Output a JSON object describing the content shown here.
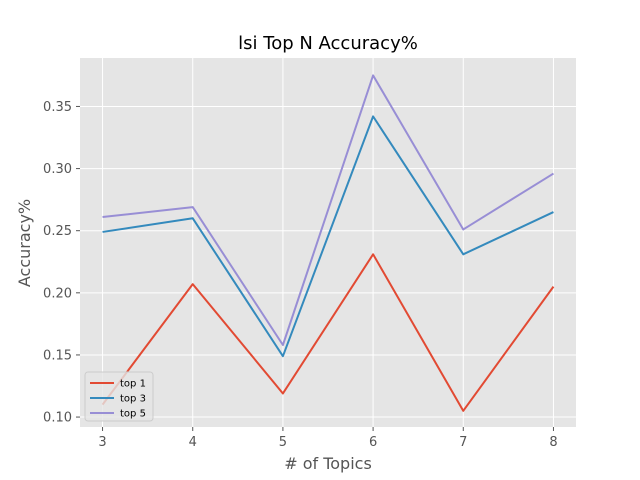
{
  "chart_data": {
    "type": "line",
    "title": "lsi Top N Accuracy%",
    "xlabel": "# of Topics",
    "ylabel": "Accuracy%",
    "x": [
      3,
      4,
      5,
      6,
      7,
      8
    ],
    "xlim": [
      2.75,
      8.25
    ],
    "ylim": [
      0.092,
      0.389
    ],
    "xticks": [
      "3",
      "4",
      "5",
      "6",
      "7",
      "8"
    ],
    "yticks": [
      "0.10",
      "0.15",
      "0.20",
      "0.25",
      "0.30",
      "0.35"
    ],
    "grid": true,
    "legend_position": "lower-left",
    "style": {
      "background": "#e5e5e5",
      "grid_color": "#ffffff"
    },
    "series": [
      {
        "name": "top 1",
        "color": "#e24a33",
        "values": [
          0.11,
          0.207,
          0.119,
          0.231,
          0.105,
          0.205
        ]
      },
      {
        "name": "top 3",
        "color": "#348abd",
        "values": [
          0.249,
          0.26,
          0.149,
          0.342,
          0.231,
          0.265
        ]
      },
      {
        "name": "top 5",
        "color": "#988ed5",
        "values": [
          0.261,
          0.269,
          0.158,
          0.375,
          0.251,
          0.296
        ]
      }
    ]
  }
}
